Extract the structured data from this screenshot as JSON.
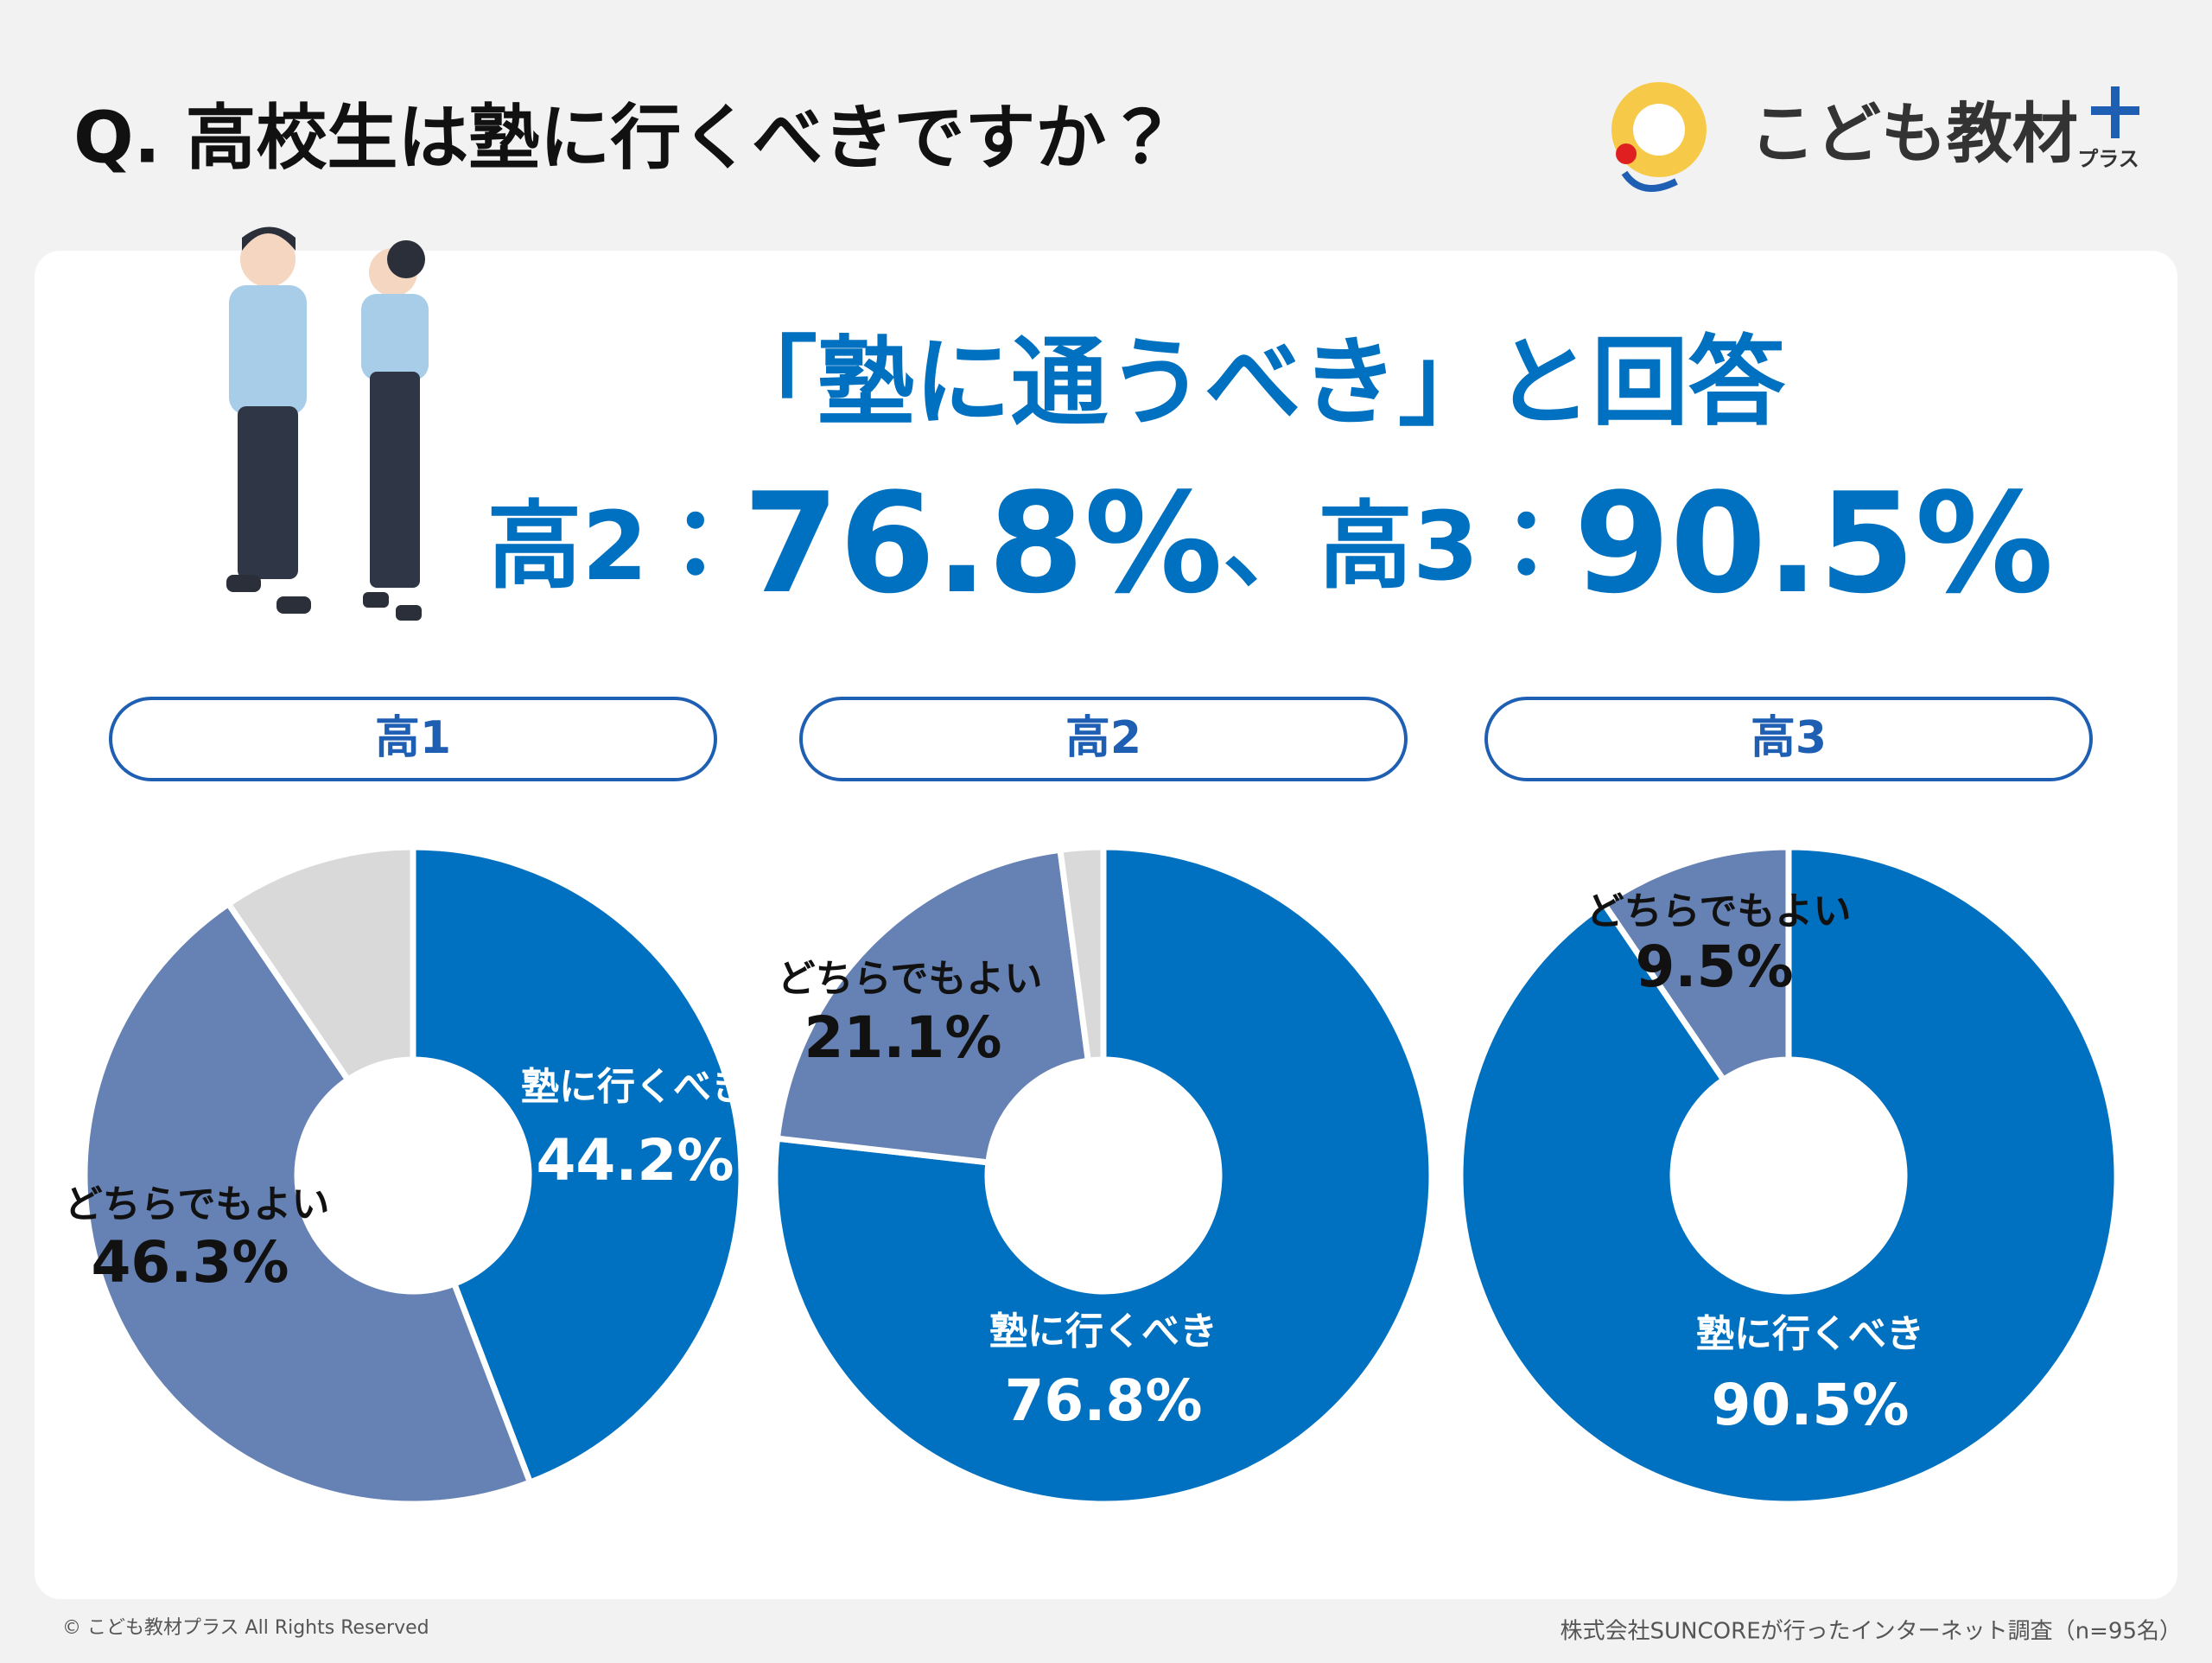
{
  "header": {
    "title": "Q. 高校生は塾に行くべきですか？",
    "logo": "こども教材",
    "logo_sub": "プラス"
  },
  "highlight": {
    "line1": "「塾に通うべき」と回答",
    "parts": [
      "高2：",
      "76.8%",
      "、高3：",
      "90.5%"
    ]
  },
  "chart_data": [
    {
      "type": "pie",
      "title": "高1",
      "categories": [
        "塾に行くべき",
        "どちらでもよい",
        null
      ],
      "values": [
        44.2,
        46.3,
        9.5
      ],
      "value_labels": [
        "44.2%",
        "46.3%",
        null
      ],
      "colors": [
        "#0070c0",
        "#6681b3",
        "#d9d9d9"
      ]
    },
    {
      "type": "pie",
      "title": "高2",
      "categories": [
        "塾に行くべき",
        "どちらでもよい",
        null
      ],
      "values": [
        76.8,
        21.1,
        2.1
      ],
      "value_labels": [
        "76.8%",
        "21.1%",
        null
      ],
      "colors": [
        "#0070c0",
        "#6681b3",
        "#d9d9d9"
      ]
    },
    {
      "type": "pie",
      "title": "高3",
      "categories": [
        "塾に行くべき",
        "どちらでもよい"
      ],
      "values": [
        90.5,
        9.5
      ],
      "value_labels": [
        "90.5%",
        "9.5%"
      ],
      "colors": [
        "#0070c0",
        "#6681b3"
      ]
    }
  ],
  "footer": {
    "copyright": "© こども教材プラス All Rights Reserved",
    "source": "株式会社SUNCOREが行ったインターネット調査（n=95名）"
  }
}
